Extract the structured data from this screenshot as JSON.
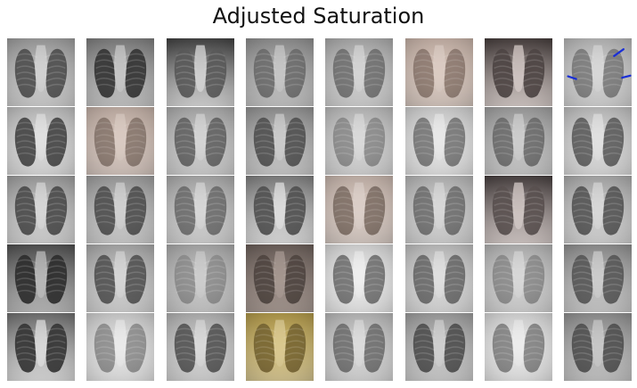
{
  "title": "Adjusted Saturation",
  "grid": {
    "rows": 5,
    "cols": 8,
    "tiles": [
      {
        "bg": "#9a9a9a",
        "lung": "#4a4a4a",
        "body": "#d8d8d8",
        "tint": "none"
      },
      {
        "bg": "#7a7a7a",
        "lung": "#2e2e2e",
        "body": "#cfcfcf",
        "tint": "none"
      },
      {
        "bg": "#3a3a3a",
        "lung": "#555555",
        "body": "#e0e0e0",
        "tint": "none"
      },
      {
        "bg": "#8c8c8c",
        "lung": "#6a6a6a",
        "body": "#cdcdcd",
        "tint": "none"
      },
      {
        "bg": "#a8a8a8",
        "lung": "#6e6e6e",
        "body": "#dadada",
        "tint": "none"
      },
      {
        "bg": "#c7b7ae",
        "lung": "#7d6e66",
        "body": "#e7ded8",
        "tint": "#c09b8a"
      },
      {
        "bg": "#1f1a1a",
        "lung": "#2a2525",
        "body": "#e9e2df",
        "tint": "#b19b98"
      },
      {
        "bg": "#b6b6b6",
        "lung": "#7a7a7a",
        "body": "#dbdbdb",
        "tint": "none",
        "markers": true
      },
      {
        "bg": "#bdbdbd",
        "lung": "#3f3f3f",
        "body": "#e5e5e5",
        "tint": "none"
      },
      {
        "bg": "#c5b6ad",
        "lung": "#7a6c64",
        "body": "#e7ddd7",
        "tint": "#b89887"
      },
      {
        "bg": "#a9a9a9",
        "lung": "#5f5f5f",
        "body": "#d9d9d9",
        "tint": "none"
      },
      {
        "bg": "#8f8f8f",
        "lung": "#4d4d4d",
        "body": "#d3d3d3",
        "tint": "none"
      },
      {
        "bg": "#b9b9b9",
        "lung": "#8a8a8a",
        "body": "#dedede",
        "tint": "none"
      },
      {
        "bg": "#cfcfcf",
        "lung": "#747474",
        "body": "#ececec",
        "tint": "none"
      },
      {
        "bg": "#9c9c9c",
        "lung": "#6a6a6a",
        "body": "#d3d3d3",
        "tint": "none"
      },
      {
        "bg": "#bdbdbd",
        "lung": "#595959",
        "body": "#e5e5e5",
        "tint": "none"
      },
      {
        "bg": "#9b9b9b",
        "lung": "#454545",
        "body": "#dedede",
        "tint": "none"
      },
      {
        "bg": "#9a9a9a",
        "lung": "#4a4a4a",
        "body": "#d7d7d7",
        "tint": "none"
      },
      {
        "bg": "#a7a7a7",
        "lung": "#6a6a6a",
        "body": "#dcdcdc",
        "tint": "none"
      },
      {
        "bg": "#7a7a7a",
        "lung": "#4b4b4b",
        "body": "#e8e8e8",
        "tint": "none"
      },
      {
        "bg": "#c9bab2",
        "lung": "#6d5f57",
        "body": "#eae2dd",
        "tint": "#b89b8e"
      },
      {
        "bg": "#b4b4b4",
        "lung": "#6c6c6c",
        "body": "#dcdcdc",
        "tint": "none"
      },
      {
        "bg": "#1f1a1b",
        "lung": "#3a3333",
        "body": "#e8e0de",
        "tint": "#b6a2a0"
      },
      {
        "bg": "#a8a8a8",
        "lung": "#505050",
        "body": "#dddddd",
        "tint": "none"
      },
      {
        "bg": "#4b4b4b",
        "lung": "#262626",
        "body": "#c4c4c4",
        "tint": "none"
      },
      {
        "bg": "#a6a6a6",
        "lung": "#4e4e4e",
        "body": "#dbdbdb",
        "tint": "none"
      },
      {
        "bg": "#a8a8a8",
        "lung": "#8d8d8d",
        "body": "#d2d2d2",
        "tint": "none"
      },
      {
        "bg": "#5e5450",
        "lung": "#3b3330",
        "body": "#b7aaa3",
        "tint": "#8f7c74"
      },
      {
        "bg": "#d7d7d7",
        "lung": "#6d6d6d",
        "body": "#f1f1f1",
        "tint": "none"
      },
      {
        "bg": "#bdbdbd",
        "lung": "#666666",
        "body": "#e3e3e3",
        "tint": "none"
      },
      {
        "bg": "#b2b2b2",
        "lung": "#8a8a8a",
        "body": "#dcdcdc",
        "tint": "none"
      },
      {
        "bg": "#8c8c8c",
        "lung": "#545454",
        "body": "#d4d4d4",
        "tint": "none"
      },
      {
        "bg": "#6a6a6a",
        "lung": "#2c2c2c",
        "body": "#e6e6e6",
        "tint": "none"
      },
      {
        "bg": "#cdcdcd",
        "lung": "#8b8b8b",
        "body": "#ededed",
        "tint": "none"
      },
      {
        "bg": "#b0b0b0",
        "lung": "#4f4f4f",
        "body": "#dddddd",
        "tint": "none"
      },
      {
        "bg": "#a88f3e",
        "lung": "#5e4d1f",
        "body": "#e6d7a8",
        "tint": "#c9b063"
      },
      {
        "bg": "#b7b7b7",
        "lung": "#6c6c6c",
        "body": "#e0e0e0",
        "tint": "none"
      },
      {
        "bg": "#9b9b9b",
        "lung": "#4a4a4a",
        "body": "#d6d6d6",
        "tint": "none"
      },
      {
        "bg": "#d7d7d7",
        "lung": "#7f7f7f",
        "body": "#efefef",
        "tint": "none"
      },
      {
        "bg": "#8d8d8d",
        "lung": "#4c4c4c",
        "body": "#cfcfcf",
        "tint": "none"
      }
    ]
  }
}
